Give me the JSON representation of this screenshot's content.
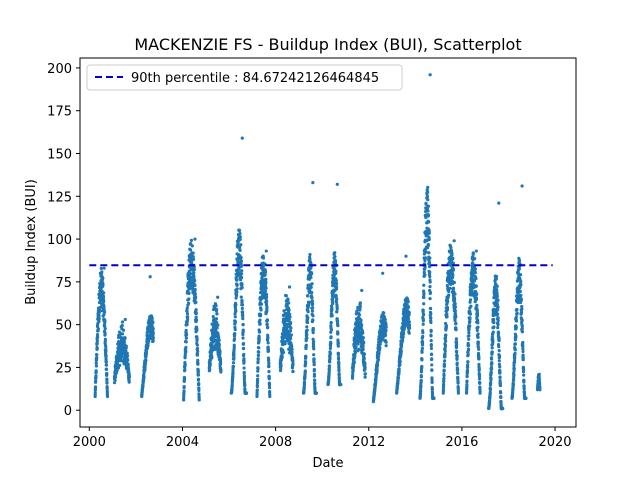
{
  "chart_data": {
    "type": "scatter",
    "title": "MACKENZIE FS - Buildup Index (BUI), Scatterplot",
    "xlabel": "Date",
    "ylabel": "Buildup Index (BUI)",
    "xlim": [
      1999.6,
      2020.9
    ],
    "ylim": [
      -9.8,
      205.8
    ],
    "x_ticks": [
      2000,
      2004,
      2008,
      2012,
      2016,
      2020
    ],
    "x_tick_labels": [
      "2000",
      "2004",
      "2008",
      "2012",
      "2016",
      "2020"
    ],
    "y_ticks": [
      0,
      25,
      50,
      75,
      100,
      125,
      150,
      175,
      200
    ],
    "y_tick_labels": [
      "0",
      "25",
      "50",
      "75",
      "100",
      "125",
      "150",
      "175",
      "200"
    ],
    "point_color": "#1f77b4",
    "reference_line": {
      "label": "90th percentile : 84.67242126464845",
      "value": 84.67242126464845,
      "x_range": [
        2000,
        2019.9
      ],
      "color": "#0000cc",
      "style": "dashed"
    },
    "legend": {
      "position": "top-left",
      "entries": [
        "90th percentile : 84.67242126464845"
      ]
    },
    "seasons": [
      {
        "start": 2000.25,
        "end": 2000.78,
        "base": 8,
        "peak": 83,
        "shape": "single"
      },
      {
        "start": 2001.08,
        "end": 2001.72,
        "base": 3,
        "peak": 53,
        "shape": "noisy"
      },
      {
        "start": 2002.25,
        "end": 2002.75,
        "base": 8,
        "peak": 78,
        "shape": "rising"
      },
      {
        "start": 2004.05,
        "end": 2004.72,
        "base": 6,
        "peak": 100,
        "shape": "single"
      },
      {
        "start": 2005.15,
        "end": 2005.65,
        "base": 6,
        "peak": 66,
        "shape": "noisy"
      },
      {
        "start": 2006.1,
        "end": 2006.75,
        "base": 10,
        "peak": 159,
        "shape": "late"
      },
      {
        "start": 2007.2,
        "end": 2007.75,
        "base": 8,
        "peak": 93,
        "shape": "single"
      },
      {
        "start": 2008.2,
        "end": 2008.75,
        "base": 5,
        "peak": 72,
        "shape": "noisy"
      },
      {
        "start": 2009.2,
        "end": 2009.75,
        "base": 10,
        "peak": 133,
        "shape": "late"
      },
      {
        "start": 2010.25,
        "end": 2010.8,
        "base": 15,
        "peak": 132,
        "shape": "late"
      },
      {
        "start": 2011.3,
        "end": 2011.85,
        "base": 1,
        "peak": 70,
        "shape": "noisy"
      },
      {
        "start": 2012.2,
        "end": 2012.75,
        "base": 5,
        "peak": 80,
        "shape": "rising"
      },
      {
        "start": 2013.2,
        "end": 2013.75,
        "base": 10,
        "peak": 90,
        "shape": "rising"
      },
      {
        "start": 2014.2,
        "end": 2014.8,
        "base": 7,
        "peak": 196,
        "shape": "late"
      },
      {
        "start": 2015.2,
        "end": 2015.85,
        "base": 10,
        "peak": 99,
        "shape": "single"
      },
      {
        "start": 2016.2,
        "end": 2016.78,
        "base": 10,
        "peak": 93,
        "shape": "single"
      },
      {
        "start": 2017.15,
        "end": 2017.75,
        "base": 1,
        "peak": 121,
        "shape": "late"
      },
      {
        "start": 2018.15,
        "end": 2018.75,
        "base": 7,
        "peak": 131,
        "shape": "late"
      },
      {
        "start": 2019.25,
        "end": 2019.35,
        "base": 12,
        "peak": 21,
        "shape": "single"
      }
    ]
  }
}
